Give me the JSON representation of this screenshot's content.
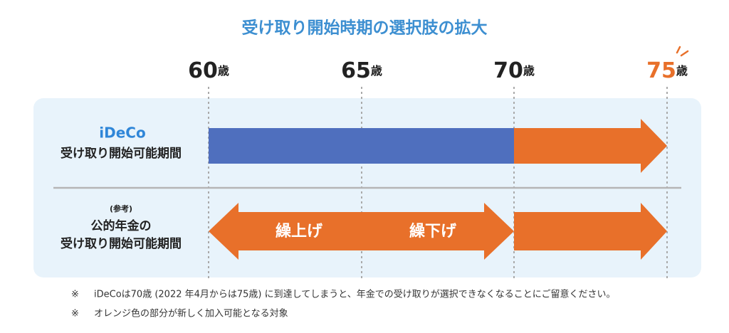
{
  "title": "受け取り開始時期の選択肢の拡大",
  "ages": [
    {
      "num": "60",
      "unit": "歳"
    },
    {
      "num": "65",
      "unit": "歳"
    },
    {
      "num": "70",
      "unit": "歳"
    },
    {
      "num": "75",
      "unit": "歳"
    }
  ],
  "rows": [
    {
      "logo": "iDeCo",
      "label": "受け取り開始可能期間"
    },
    {
      "note": "(参考)",
      "label_line1": "公的年金の",
      "label_line2": "受け取り開始可能期間",
      "arrow_left": "繰上げ",
      "arrow_right": "繰下げ"
    }
  ],
  "notes": [
    {
      "mark": "※",
      "text": "iDeCoは70歳 (2022 年4月からは75歳) に到達してしまうと、年金での受け取りが選択できなくなることにご留意ください。"
    },
    {
      "mark": "※",
      "text": "オレンジ色の部分が新しく加入可能となる対象"
    }
  ]
}
